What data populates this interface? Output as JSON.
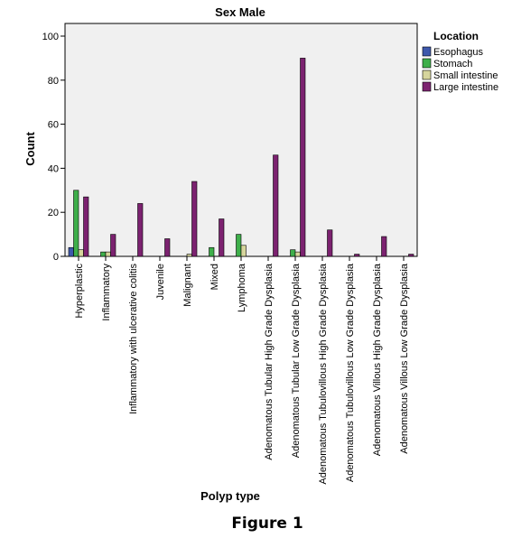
{
  "caption": "Figure 1",
  "chart_data": {
    "type": "bar",
    "title": "Sex Male",
    "xlabel": "Polyp type",
    "ylabel": "Count",
    "ylim": [
      0,
      105
    ],
    "yticks": [
      0,
      20,
      40,
      60,
      80,
      100
    ],
    "grid": false,
    "legend_title": "Location",
    "legend_position": "top-right outside",
    "categories": [
      "Hyperplastic",
      "Inflammatory",
      "Inflammatory with ulcerative colitis",
      "Juvenile",
      "Malignant",
      "Mixed",
      "Lymphoma",
      "Adenomatous Tubular High Grade Dysplasia",
      "Adenomatous Tubular Low Grade Dysplasia",
      "Adenomatous Tubulovillous High Grade Dysplasia",
      "Adenomatous Tubulovillous Low Grade Dysplasia",
      "Adenomatous Villous High Grade Dysplasia",
      "Adenomatous Villous Low Grade Dysplasia"
    ],
    "series": [
      {
        "name": "Esophagus",
        "color": "#3e58ac",
        "values": [
          4,
          0,
          0,
          0,
          0,
          0,
          0,
          0,
          0,
          0,
          0,
          0,
          0
        ]
      },
      {
        "name": "Stomach",
        "color": "#3eaf4a",
        "values": [
          30,
          2,
          0,
          0,
          0,
          4,
          10,
          0,
          3,
          0,
          0,
          0,
          0
        ]
      },
      {
        "name": "Small intestine",
        "color": "#d6d59c",
        "values": [
          3,
          2,
          0,
          0,
          1,
          0,
          5,
          0,
          2,
          0,
          0,
          0,
          0
        ]
      },
      {
        "name": "Large intestine",
        "color": "#7c2270",
        "values": [
          27,
          10,
          24,
          8,
          34,
          17,
          0,
          46,
          90,
          12,
          1,
          9,
          1
        ]
      }
    ]
  }
}
